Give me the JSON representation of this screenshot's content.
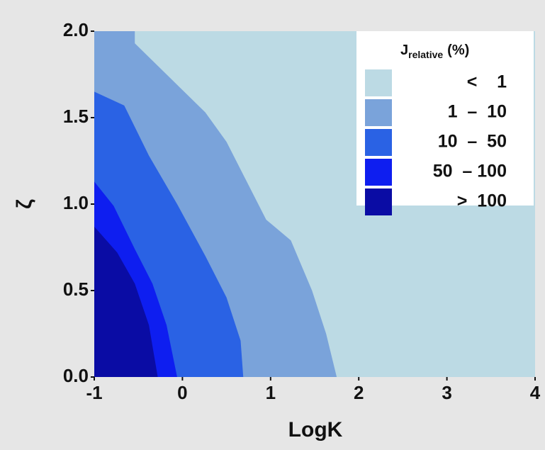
{
  "chart_data": {
    "type": "contour",
    "x_label": "LogK",
    "y_label": "ζ",
    "xlim": [
      -1,
      4
    ],
    "ylim": [
      0,
      2
    ],
    "xticks": [
      -1,
      0,
      1,
      2,
      3,
      4
    ],
    "yticks": [
      {
        "value": 0,
        "label": "0.0"
      },
      0.5,
      {
        "value": 1,
        "label": "1.0"
      },
      1.5,
      {
        "value": 2,
        "label": "2.0"
      }
    ],
    "legend_title": "J",
    "legend_title_sub": "relative",
    "legend_title_unit": "(%)",
    "legend_position": "upper right",
    "series": [
      {
        "name": "<    1",
        "color": "#bcdae4"
      },
      {
        "name": "1  –  10",
        "color": "#7aa3da",
        "x": [
          -0.54,
          -0.54,
          -0.14,
          0.26,
          0.5,
          0.7,
          0.95,
          1.23,
          1.47,
          1.63,
          1.75
        ],
        "y": [
          2.0,
          1.93,
          1.73,
          1.53,
          1.36,
          1.16,
          0.91,
          0.79,
          0.5,
          0.25,
          0.0
        ]
      },
      {
        "name": "10  –  50",
        "color": "#2a62e4",
        "x": [
          -1,
          -0.66,
          -0.38,
          -0.06,
          0.26,
          0.5,
          0.66,
          0.69
        ],
        "y": [
          1.65,
          1.57,
          1.28,
          1.0,
          0.7,
          0.46,
          0.21,
          0.0
        ]
      },
      {
        "name": "50  – 100",
        "color": "#0e1ef0",
        "x": [
          -1,
          -0.78,
          -0.54,
          -0.34,
          -0.18,
          -0.06
        ],
        "y": [
          1.13,
          0.99,
          0.74,
          0.54,
          0.3,
          0.0
        ]
      },
      {
        "name": ">  100",
        "color": "#0a0ca4",
        "x": [
          -1,
          -0.74,
          -0.54,
          -0.38,
          -0.28
        ],
        "y": [
          0.87,
          0.72,
          0.54,
          0.3,
          0.0
        ]
      }
    ]
  }
}
